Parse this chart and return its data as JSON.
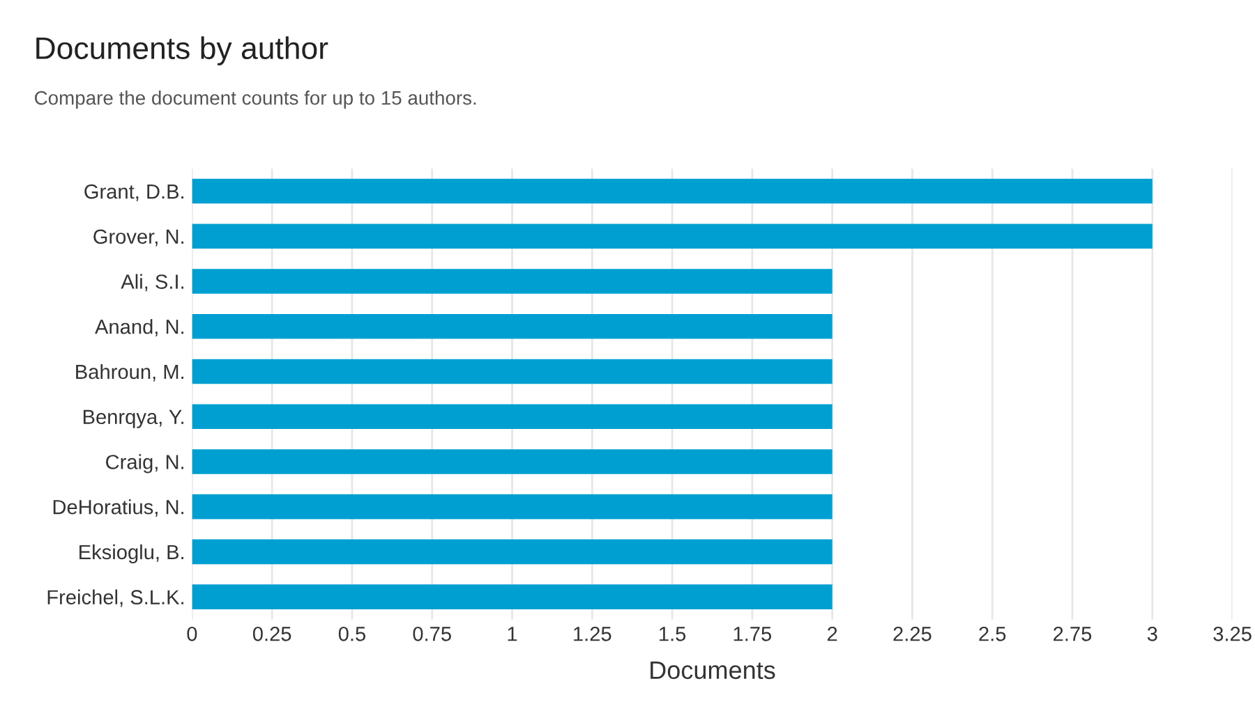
{
  "chart_data": {
    "type": "bar",
    "orientation": "horizontal",
    "title": "Documents by author",
    "subtitle": "Compare the document counts for up to 15 authors.",
    "xlabel": "Documents",
    "categories": [
      "Grant, D.B.",
      "Grover, N.",
      "Ali, S.I.",
      "Anand, N.",
      "Bahroun, M.",
      "Benrqya, Y.",
      "Craig, N.",
      "DeHoratius, N.",
      "Eksioglu, B.",
      "Freichel, S.L.K."
    ],
    "values": [
      3,
      3,
      2,
      2,
      2,
      2,
      2,
      2,
      2,
      2
    ],
    "color": "#009fd1",
    "xlim": [
      0,
      3.25
    ],
    "xticks": [
      0,
      0.25,
      0.5,
      0.75,
      1,
      1.25,
      1.5,
      1.75,
      2,
      2.25,
      2.5,
      2.75,
      3,
      3.25
    ],
    "grid": "x",
    "legend": false
  }
}
